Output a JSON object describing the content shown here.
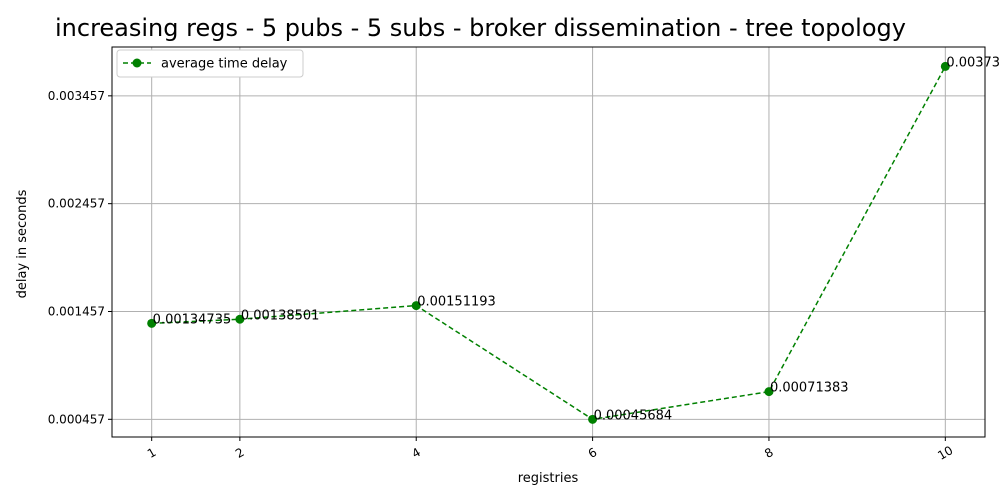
{
  "chart_data": {
    "type": "line",
    "title": "increasing regs - 5 pubs - 5 subs - broker dissemination - tree topology",
    "xlabel": "registries",
    "ylabel": "delay in seconds",
    "x": [
      1,
      2,
      4,
      6,
      8,
      10
    ],
    "xticks": [
      "1",
      "2",
      "4",
      "6",
      "8",
      "10"
    ],
    "xlim": [
      0.55,
      10.45
    ],
    "yticks": [
      "0.000457",
      "0.001457",
      "0.002457",
      "0.003457"
    ],
    "ytick_values": [
      0.000457,
      0.001457,
      0.002457,
      0.003457
    ],
    "ylim": [
      0.000293,
      0.00391
    ],
    "grid": true,
    "legend_position": "upper left",
    "series": [
      {
        "name": "average time delay",
        "color": "#008000",
        "linestyle": "dashed",
        "marker": "circle",
        "values": [
          0.00134735,
          0.00138501,
          0.00151193,
          0.00045684,
          0.00071383,
          0.00373
        ],
        "labels": [
          "0.00134735",
          "0.00138501",
          "0.00151193",
          "0.00045684",
          "0.00071383",
          "0.00373"
        ]
      }
    ]
  }
}
